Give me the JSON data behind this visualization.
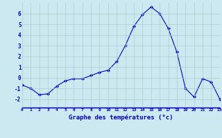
{
  "x": [
    0,
    1,
    2,
    3,
    4,
    5,
    6,
    7,
    8,
    9,
    10,
    11,
    12,
    13,
    14,
    15,
    16,
    17,
    18,
    19,
    20,
    21,
    22,
    23
  ],
  "y": [
    -0.7,
    -1.0,
    -1.6,
    -1.5,
    -0.8,
    -0.3,
    -0.1,
    -0.1,
    0.2,
    0.5,
    0.7,
    1.5,
    3.0,
    4.8,
    5.9,
    6.6,
    6.0,
    4.6,
    2.4,
    -1.0,
    -1.8,
    -0.1,
    -0.4,
    -2.0
  ],
  "line_color": "#0000cc",
  "marker": "D",
  "marker_size": 2.0,
  "background_color": "#cce8f0",
  "grid_color": "#aacccc",
  "xlabel": "Graphe des températures (°c)",
  "xlabel_color": "#0000cc",
  "tick_color": "#0000cc",
  "axis_line_color": "#0000cc",
  "ylim": [
    -2.8,
    7.0
  ],
  "xlim": [
    0,
    23
  ],
  "yticks": [
    -2,
    -1,
    0,
    1,
    2,
    3,
    4,
    5,
    6
  ],
  "xticks": [
    0,
    1,
    2,
    3,
    4,
    5,
    6,
    7,
    8,
    9,
    10,
    11,
    12,
    13,
    14,
    15,
    16,
    17,
    18,
    19,
    20,
    21,
    22,
    23
  ]
}
